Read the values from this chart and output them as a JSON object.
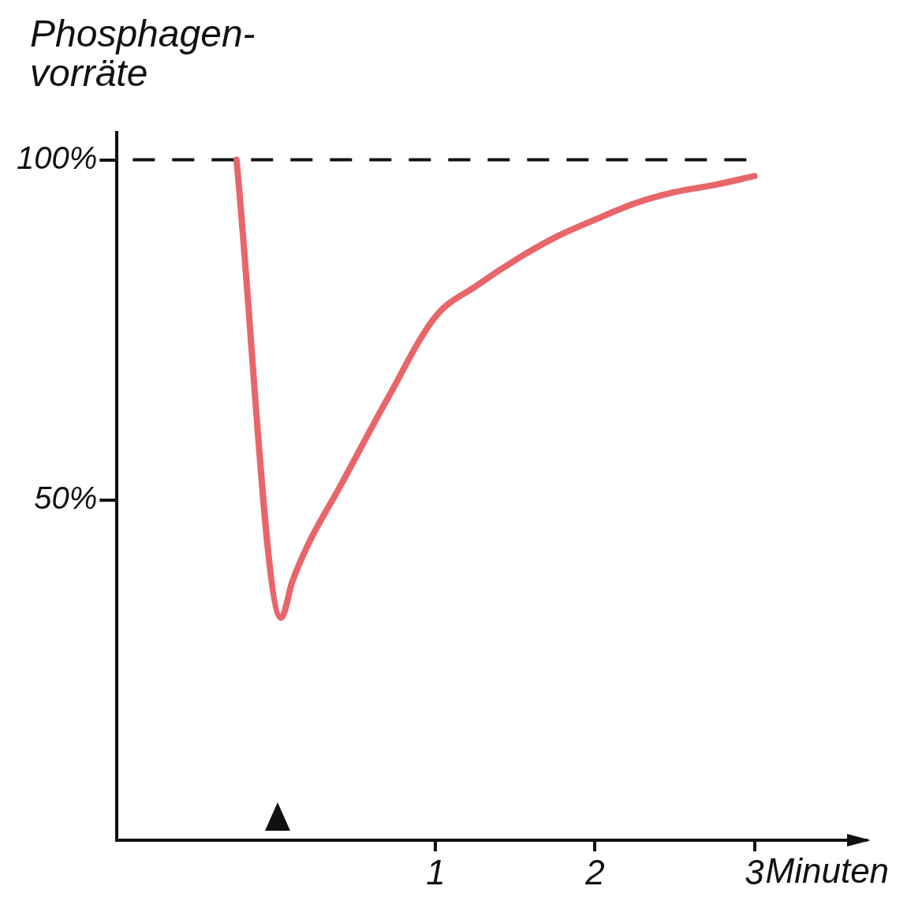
{
  "chart_data": {
    "type": "line",
    "ylabel": "Phosphagen-\nvorräte",
    "xlabel": "Minuten",
    "x": [
      -0.25,
      0.03,
      0.1,
      0.2,
      0.4,
      0.7,
      1,
      1.25,
      1.53,
      1.75,
      2,
      2.25,
      2.49,
      2.75,
      3
    ],
    "series": [
      {
        "color": "#e8666a",
        "values": [
          100,
          32.7,
          38,
          43.5,
          52,
          65,
          77,
          81.4,
          85.7,
          88.6,
          91.2,
          93.6,
          95.2,
          96.3,
          97.6
        ]
      }
    ],
    "xlim": [
      -1,
      3.7
    ],
    "xticks": [
      1,
      2,
      3
    ],
    "ylim": [
      0,
      104
    ],
    "yticks": [
      {
        "value": 50,
        "label": "50%"
      },
      {
        "value": 100,
        "label": "100%"
      }
    ],
    "ref_lines": [
      {
        "axis": "y",
        "value": 100,
        "line_style": "dashed",
        "color": "#111111"
      }
    ],
    "grid": false,
    "legend": false,
    "marker": "none",
    "line_style": "solid"
  }
}
